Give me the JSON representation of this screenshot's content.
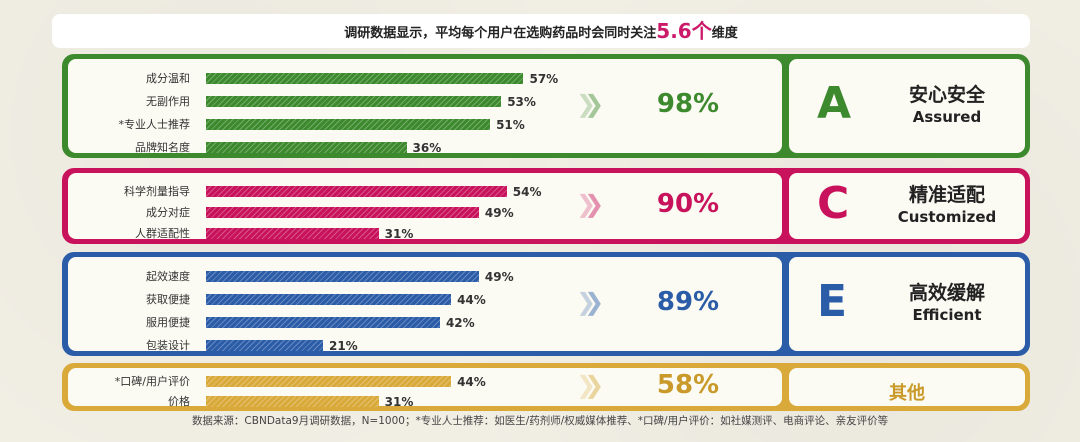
{
  "headline": {
    "prefix": "调研数据显示，平均每个用户在选购药品时会同时关注",
    "highlight": "5.6个",
    "suffix": "维度"
  },
  "colors": {
    "green": "#3d8a2e",
    "pink": "#c8135c",
    "blue": "#2b5ca8",
    "gold": "#d9a93a"
  },
  "groups": [
    {
      "key": "A",
      "color": "#3d8a2e",
      "rows": [
        {
          "label": "成分温和",
          "value": 57,
          "value_label": "57%"
        },
        {
          "label": "无副作用",
          "value": 53,
          "value_label": "53%"
        },
        {
          "label": "*专业人士推荐",
          "value": 51,
          "value_label": "51%"
        },
        {
          "label": "品牌知名度",
          "value": 36,
          "value_label": "36%"
        }
      ],
      "total": 98,
      "total_label": "98%",
      "letter": "A",
      "zh": "安心安全",
      "en": "Assured"
    },
    {
      "key": "C",
      "color": "#c8135c",
      "rows": [
        {
          "label": "科学剂量指导",
          "value": 54,
          "value_label": "54%"
        },
        {
          "label": "成分对症",
          "value": 49,
          "value_label": "49%"
        },
        {
          "label": "人群适配性",
          "value": 31,
          "value_label": "31%"
        }
      ],
      "total": 90,
      "total_label": "90%",
      "letter": "C",
      "zh": "精准适配",
      "en": "Customized"
    },
    {
      "key": "E",
      "color": "#2b5ca8",
      "rows": [
        {
          "label": "起效速度",
          "value": 49,
          "value_label": "49%"
        },
        {
          "label": "获取便捷",
          "value": 44,
          "value_label": "44%"
        },
        {
          "label": "服用便捷",
          "value": 42,
          "value_label": "42%"
        },
        {
          "label": "包装设计",
          "value": 21,
          "value_label": "21%"
        }
      ],
      "total": 89,
      "total_label": "89%",
      "letter": "E",
      "zh": "高效缓解",
      "en": "Efficient"
    },
    {
      "key": "O",
      "color": "#d9a93a",
      "rows": [
        {
          "label": "*口碑/用户评价",
          "value": 44,
          "value_label": "44%"
        },
        {
          "label": "价格",
          "value": 31,
          "value_label": "31%"
        }
      ],
      "total": 58,
      "total_label": "58%",
      "letter": "",
      "zh": "其他",
      "en": ""
    }
  ],
  "chart_data": {
    "type": "bar",
    "orientation": "horizontal",
    "categories": [
      "成分温和",
      "无副作用",
      "*专业人士推荐",
      "品牌知名度",
      "科学剂量指导",
      "成分对症",
      "人群适配性",
      "起效速度",
      "获取便捷",
      "服用便捷",
      "包装设计",
      "*口碑/用户评价",
      "价格"
    ],
    "values": [
      57,
      53,
      51,
      36,
      54,
      49,
      31,
      49,
      44,
      42,
      21,
      44,
      31
    ],
    "group_totals": {
      "安心安全 Assured": 98,
      "精准适配 Customized": 90,
      "高效缓解 Efficient": 89,
      "其他": 58
    },
    "xlim": [
      0,
      60
    ]
  },
  "footnote": "数据来源：CBNData9月调研数据，N=1000；*专业人士推荐：如医生/药剂师/权威媒体推荐、*口碑/用户评价：如社媒测评、电商评论、亲友评价等"
}
